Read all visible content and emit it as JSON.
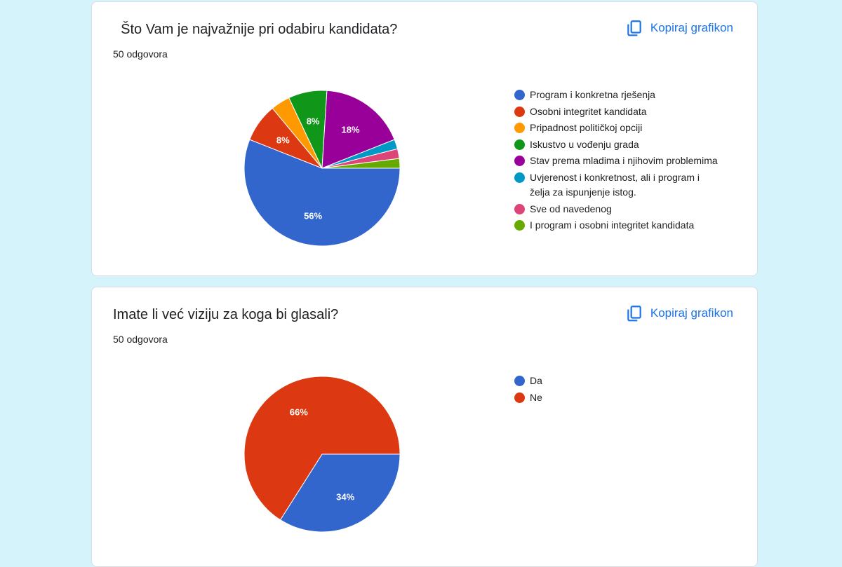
{
  "cards": [
    {
      "title": "  Što Vam je najvažnije pri odabiru kandidata?",
      "responses": "50 odgovora",
      "copy_label": "Kopiraj grafikon",
      "legend": [
        {
          "label": "Program i konkretna rješenja",
          "color": "#3366cc"
        },
        {
          "label": "Osobni integritet kandidata",
          "color": "#dc3912"
        },
        {
          "label": "Pripadnost političkoj opciji",
          "color": "#ff9900"
        },
        {
          "label": "Iskustvo u vođenju grada",
          "color": "#109618"
        },
        {
          "label": "Stav prema mladima i njihovim problemima",
          "color": "#990099"
        },
        {
          "label": "Uvjerenost i konkretnost, ali i program i želja za ispunjenje istog.",
          "color": "#0099c6"
        },
        {
          "label": "Sve od navedenog",
          "color": "#dd4477"
        },
        {
          "label": "I program i osobni integritet kandidata",
          "color": "#66aa00"
        }
      ]
    },
    {
      "title": "Imate li već viziju za koga bi glasali?",
      "responses": "50 odgovora",
      "copy_label": "Kopiraj grafikon",
      "legend": [
        {
          "label": "Da",
          "color": "#3366cc"
        },
        {
          "label": "Ne",
          "color": "#dc3912"
        }
      ]
    }
  ],
  "chart_data": [
    {
      "type": "pie",
      "title": "Što Vam je najvažnije pri odabiru kandidata?",
      "categories": [
        "Program i konkretna rješenja",
        "Osobni integritet kandidata",
        "Pripadnost političkoj opciji",
        "Iskustvo u vođenju grada",
        "Stav prema mladima i njihovim problemima",
        "Uvjerenost i konkretnost, ali i program i želja za ispunjenje istog.",
        "Sve od navedenog",
        "I program i osobni integritet kandidata"
      ],
      "values": [
        56,
        8,
        4,
        8,
        18,
        2,
        2,
        2
      ],
      "data_labels": [
        "56%",
        "8%",
        "",
        "8%",
        "18%",
        "",
        "",
        ""
      ],
      "colors": [
        "#3366cc",
        "#dc3912",
        "#ff9900",
        "#109618",
        "#990099",
        "#0099c6",
        "#dd4477",
        "#66aa00"
      ],
      "legend_position": "right"
    },
    {
      "type": "pie",
      "title": "Imate li već viziju za koga bi glasali?",
      "categories": [
        "Da",
        "Ne"
      ],
      "values": [
        34,
        66
      ],
      "data_labels": [
        "34%",
        "66%"
      ],
      "colors": [
        "#3366cc",
        "#dc3912"
      ],
      "legend_position": "right"
    }
  ]
}
